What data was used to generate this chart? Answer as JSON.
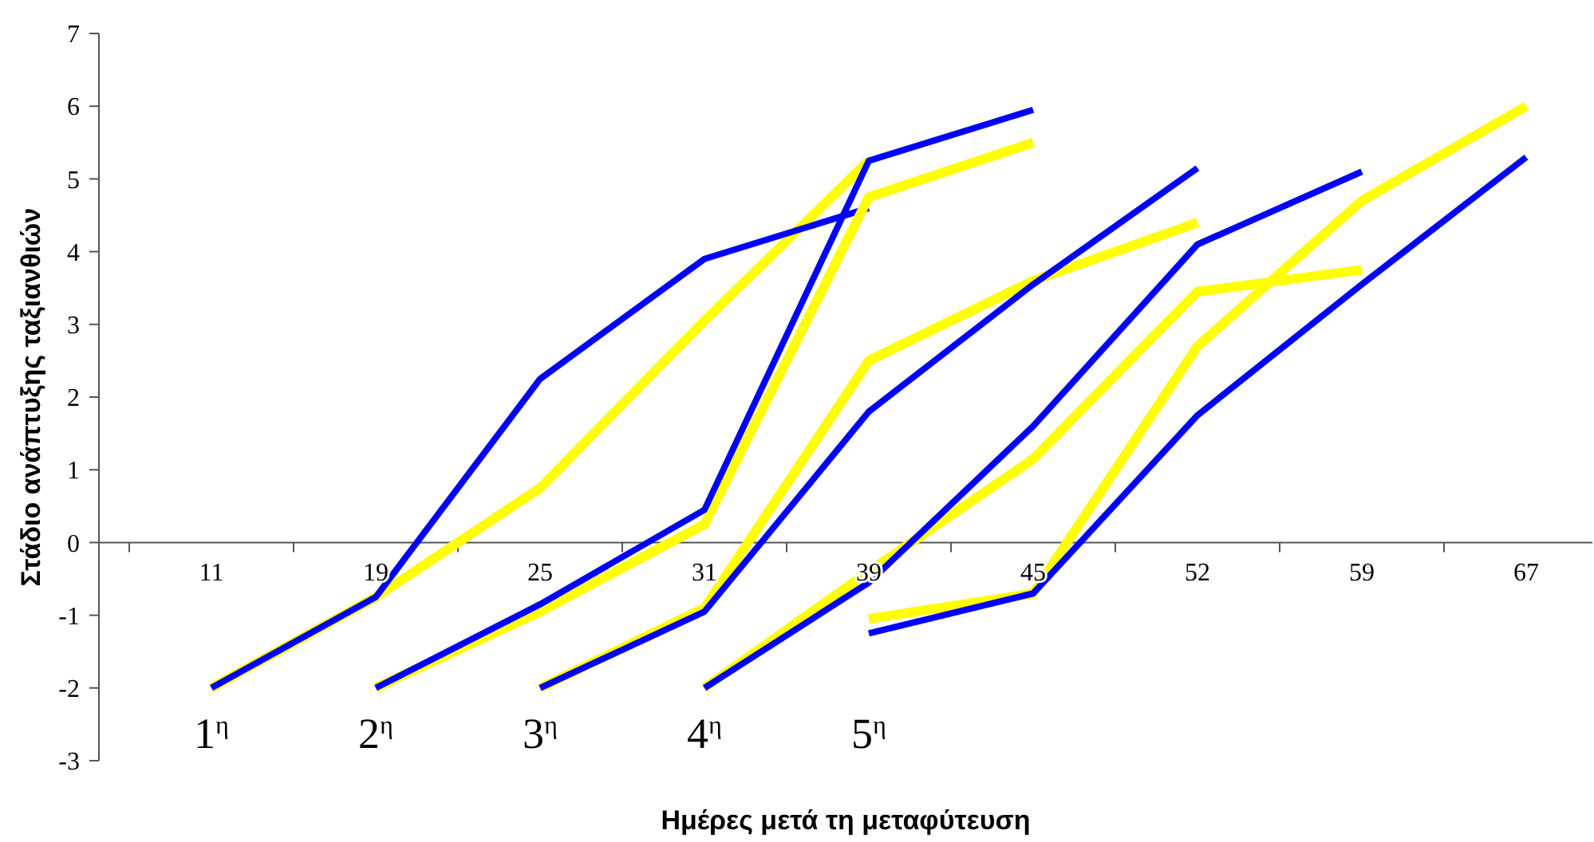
{
  "chart_data": {
    "type": "line",
    "xlabel": "Ημέρες μετά τη μεταφύτευση",
    "ylabel": "Στάδιο ανάπτυξης ταξιανθιών",
    "categories": [
      "11",
      "19",
      "25",
      "31",
      "39",
      "45",
      "52",
      "59",
      "67"
    ],
    "ylim": [
      -3,
      7
    ],
    "yticks": [
      -3,
      -2,
      -1,
      0,
      1,
      2,
      3,
      4,
      5,
      6,
      7
    ],
    "grid": false,
    "marker": "none",
    "line_style": "solid",
    "series": [
      {
        "color": "#ffff00",
        "values": [
          -2,
          -0.75,
          0.75,
          3.05,
          5.25,
          null,
          null,
          null,
          null
        ]
      },
      {
        "color": "#0000ff",
        "values": [
          -2,
          -0.75,
          2.25,
          3.9,
          4.6,
          null,
          null,
          null,
          null
        ]
      },
      {
        "color": "#ffff00",
        "values": [
          null,
          -2,
          -0.95,
          0.25,
          4.75,
          5.5,
          null,
          null,
          null
        ]
      },
      {
        "color": "#0000ff",
        "values": [
          null,
          -2,
          -0.85,
          0.45,
          5.25,
          5.95,
          null,
          null,
          null
        ]
      },
      {
        "color": "#ffff00",
        "values": [
          null,
          null,
          -2,
          -0.9,
          2.5,
          3.6,
          4.4,
          null,
          null
        ]
      },
      {
        "color": "#0000ff",
        "values": [
          null,
          null,
          -2,
          -0.95,
          1.8,
          3.55,
          5.15,
          null,
          null
        ]
      },
      {
        "color": "#ffff00",
        "values": [
          null,
          null,
          null,
          -2,
          -0.4,
          1.15,
          3.45,
          3.75,
          null
        ]
      },
      {
        "color": "#0000ff",
        "values": [
          null,
          null,
          null,
          -2,
          -0.55,
          1.6,
          4.1,
          5.1,
          null
        ]
      },
      {
        "color": "#ffff00",
        "values": [
          null,
          null,
          null,
          null,
          -1.05,
          -0.7,
          2.7,
          4.7,
          6.0
        ]
      },
      {
        "color": "#0000ff",
        "values": [
          null,
          null,
          null,
          null,
          -1.25,
          -0.7,
          1.75,
          3.55,
          5.3
        ]
      }
    ],
    "annotations": [
      "1$^{η}$",
      "2$^{η}$",
      "3$^{η}$",
      "4$^{η}$",
      "5$^{η}$"
    ]
  }
}
